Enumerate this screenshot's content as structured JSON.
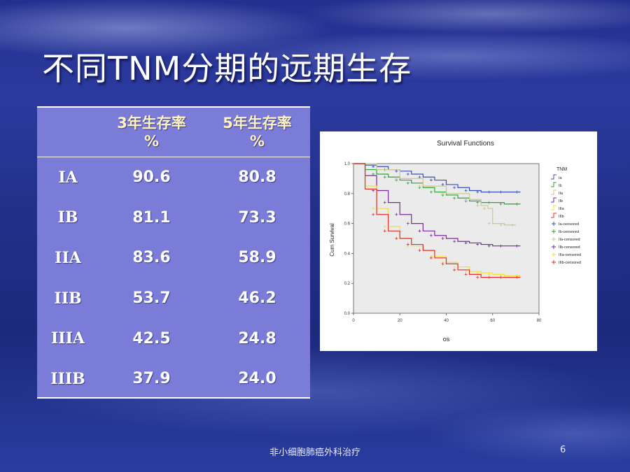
{
  "slide": {
    "title": "不同TNM分期的远期生存",
    "footer": "非小细胞肺癌外科治疗",
    "page_number": "6"
  },
  "table": {
    "headers": [
      "",
      "3年生存率%",
      "5年生存率%"
    ],
    "header_lines": [
      [
        "3年生存率",
        "%"
      ],
      [
        "5年生存率",
        "%"
      ]
    ],
    "rows": [
      {
        "stage": "IA",
        "y3": "90.6",
        "y5": "80.8"
      },
      {
        "stage": "IB",
        "y3": "81.1",
        "y5": "73.3"
      },
      {
        "stage": "IIA",
        "y3": "83.6",
        "y5": "58.9"
      },
      {
        "stage": "IIB",
        "y3": "53.7",
        "y5": "46.2"
      },
      {
        "stage": "IIIA",
        "y3": "42.5",
        "y5": "24.8"
      },
      {
        "stage": "IIIB",
        "y3": "37.9",
        "y5": "24.0"
      }
    ]
  },
  "chart_data": {
    "type": "line",
    "title": "Survival Functions",
    "xlabel": "os",
    "ylabel": "Cum Survival",
    "xlim": [
      0,
      80
    ],
    "ylim": [
      0,
      1
    ],
    "xticks": [
      "0",
      "20",
      "40",
      "60",
      "80"
    ],
    "yticks": [
      "0.0",
      "0.2",
      "0.4",
      "0.6",
      "0.8",
      "1.0"
    ],
    "legend_title": "TNM",
    "legend_position": "right",
    "legend_entries": [
      "Ia",
      "Ib",
      "IIa",
      "IIb",
      "IIIa",
      "IIIb",
      "Ia-censored",
      "Ib-censored",
      "IIa-censored",
      "IIb-censored",
      "IIIa-censored",
      "IIIb-censored"
    ],
    "series": [
      {
        "name": "Ia",
        "color": "#3a4fb5",
        "x": [
          0,
          5,
          10,
          15,
          20,
          25,
          30,
          35,
          40,
          45,
          50,
          55,
          60,
          65,
          72
        ],
        "y": [
          1.0,
          0.99,
          0.98,
          0.96,
          0.95,
          0.93,
          0.91,
          0.89,
          0.86,
          0.84,
          0.82,
          0.81,
          0.81,
          0.81,
          0.81
        ]
      },
      {
        "name": "Ib",
        "color": "#2aa63a",
        "x": [
          0,
          5,
          10,
          15,
          20,
          25,
          30,
          35,
          40,
          45,
          50,
          55,
          60,
          65,
          72
        ],
        "y": [
          1.0,
          0.96,
          0.93,
          0.91,
          0.89,
          0.87,
          0.84,
          0.81,
          0.79,
          0.77,
          0.75,
          0.74,
          0.74,
          0.73,
          0.73
        ]
      },
      {
        "name": "IIa",
        "color": "#c8c890",
        "x": [
          0,
          10,
          20,
          30,
          40,
          50,
          55,
          58,
          60,
          65,
          70
        ],
        "y": [
          1.0,
          0.96,
          0.9,
          0.85,
          0.8,
          0.76,
          0.72,
          0.7,
          0.6,
          0.59,
          0.59
        ]
      },
      {
        "name": "IIb",
        "color": "#7a2a9a",
        "x": [
          0,
          5,
          10,
          15,
          20,
          25,
          30,
          35,
          40,
          45,
          50,
          55,
          60,
          65,
          72
        ],
        "y": [
          1.0,
          0.92,
          0.82,
          0.74,
          0.66,
          0.6,
          0.55,
          0.52,
          0.5,
          0.48,
          0.47,
          0.46,
          0.45,
          0.45,
          0.45
        ]
      },
      {
        "name": "IIIa",
        "color": "#f0e040",
        "x": [
          0,
          5,
          10,
          15,
          20,
          25,
          30,
          35,
          40,
          45,
          50,
          55,
          60,
          65,
          72
        ],
        "y": [
          1.0,
          0.85,
          0.7,
          0.58,
          0.5,
          0.45,
          0.42,
          0.38,
          0.34,
          0.31,
          0.28,
          0.27,
          0.26,
          0.25,
          0.25
        ]
      },
      {
        "name": "IIIb",
        "color": "#e03030",
        "x": [
          0,
          5,
          10,
          15,
          20,
          25,
          30,
          35,
          40,
          45,
          50,
          55,
          60,
          65,
          72
        ],
        "y": [
          1.0,
          0.83,
          0.66,
          0.55,
          0.5,
          0.46,
          0.42,
          0.37,
          0.33,
          0.29,
          0.26,
          0.24,
          0.24,
          0.24,
          0.24
        ]
      }
    ],
    "grid": false,
    "background": "#ebebeb"
  }
}
